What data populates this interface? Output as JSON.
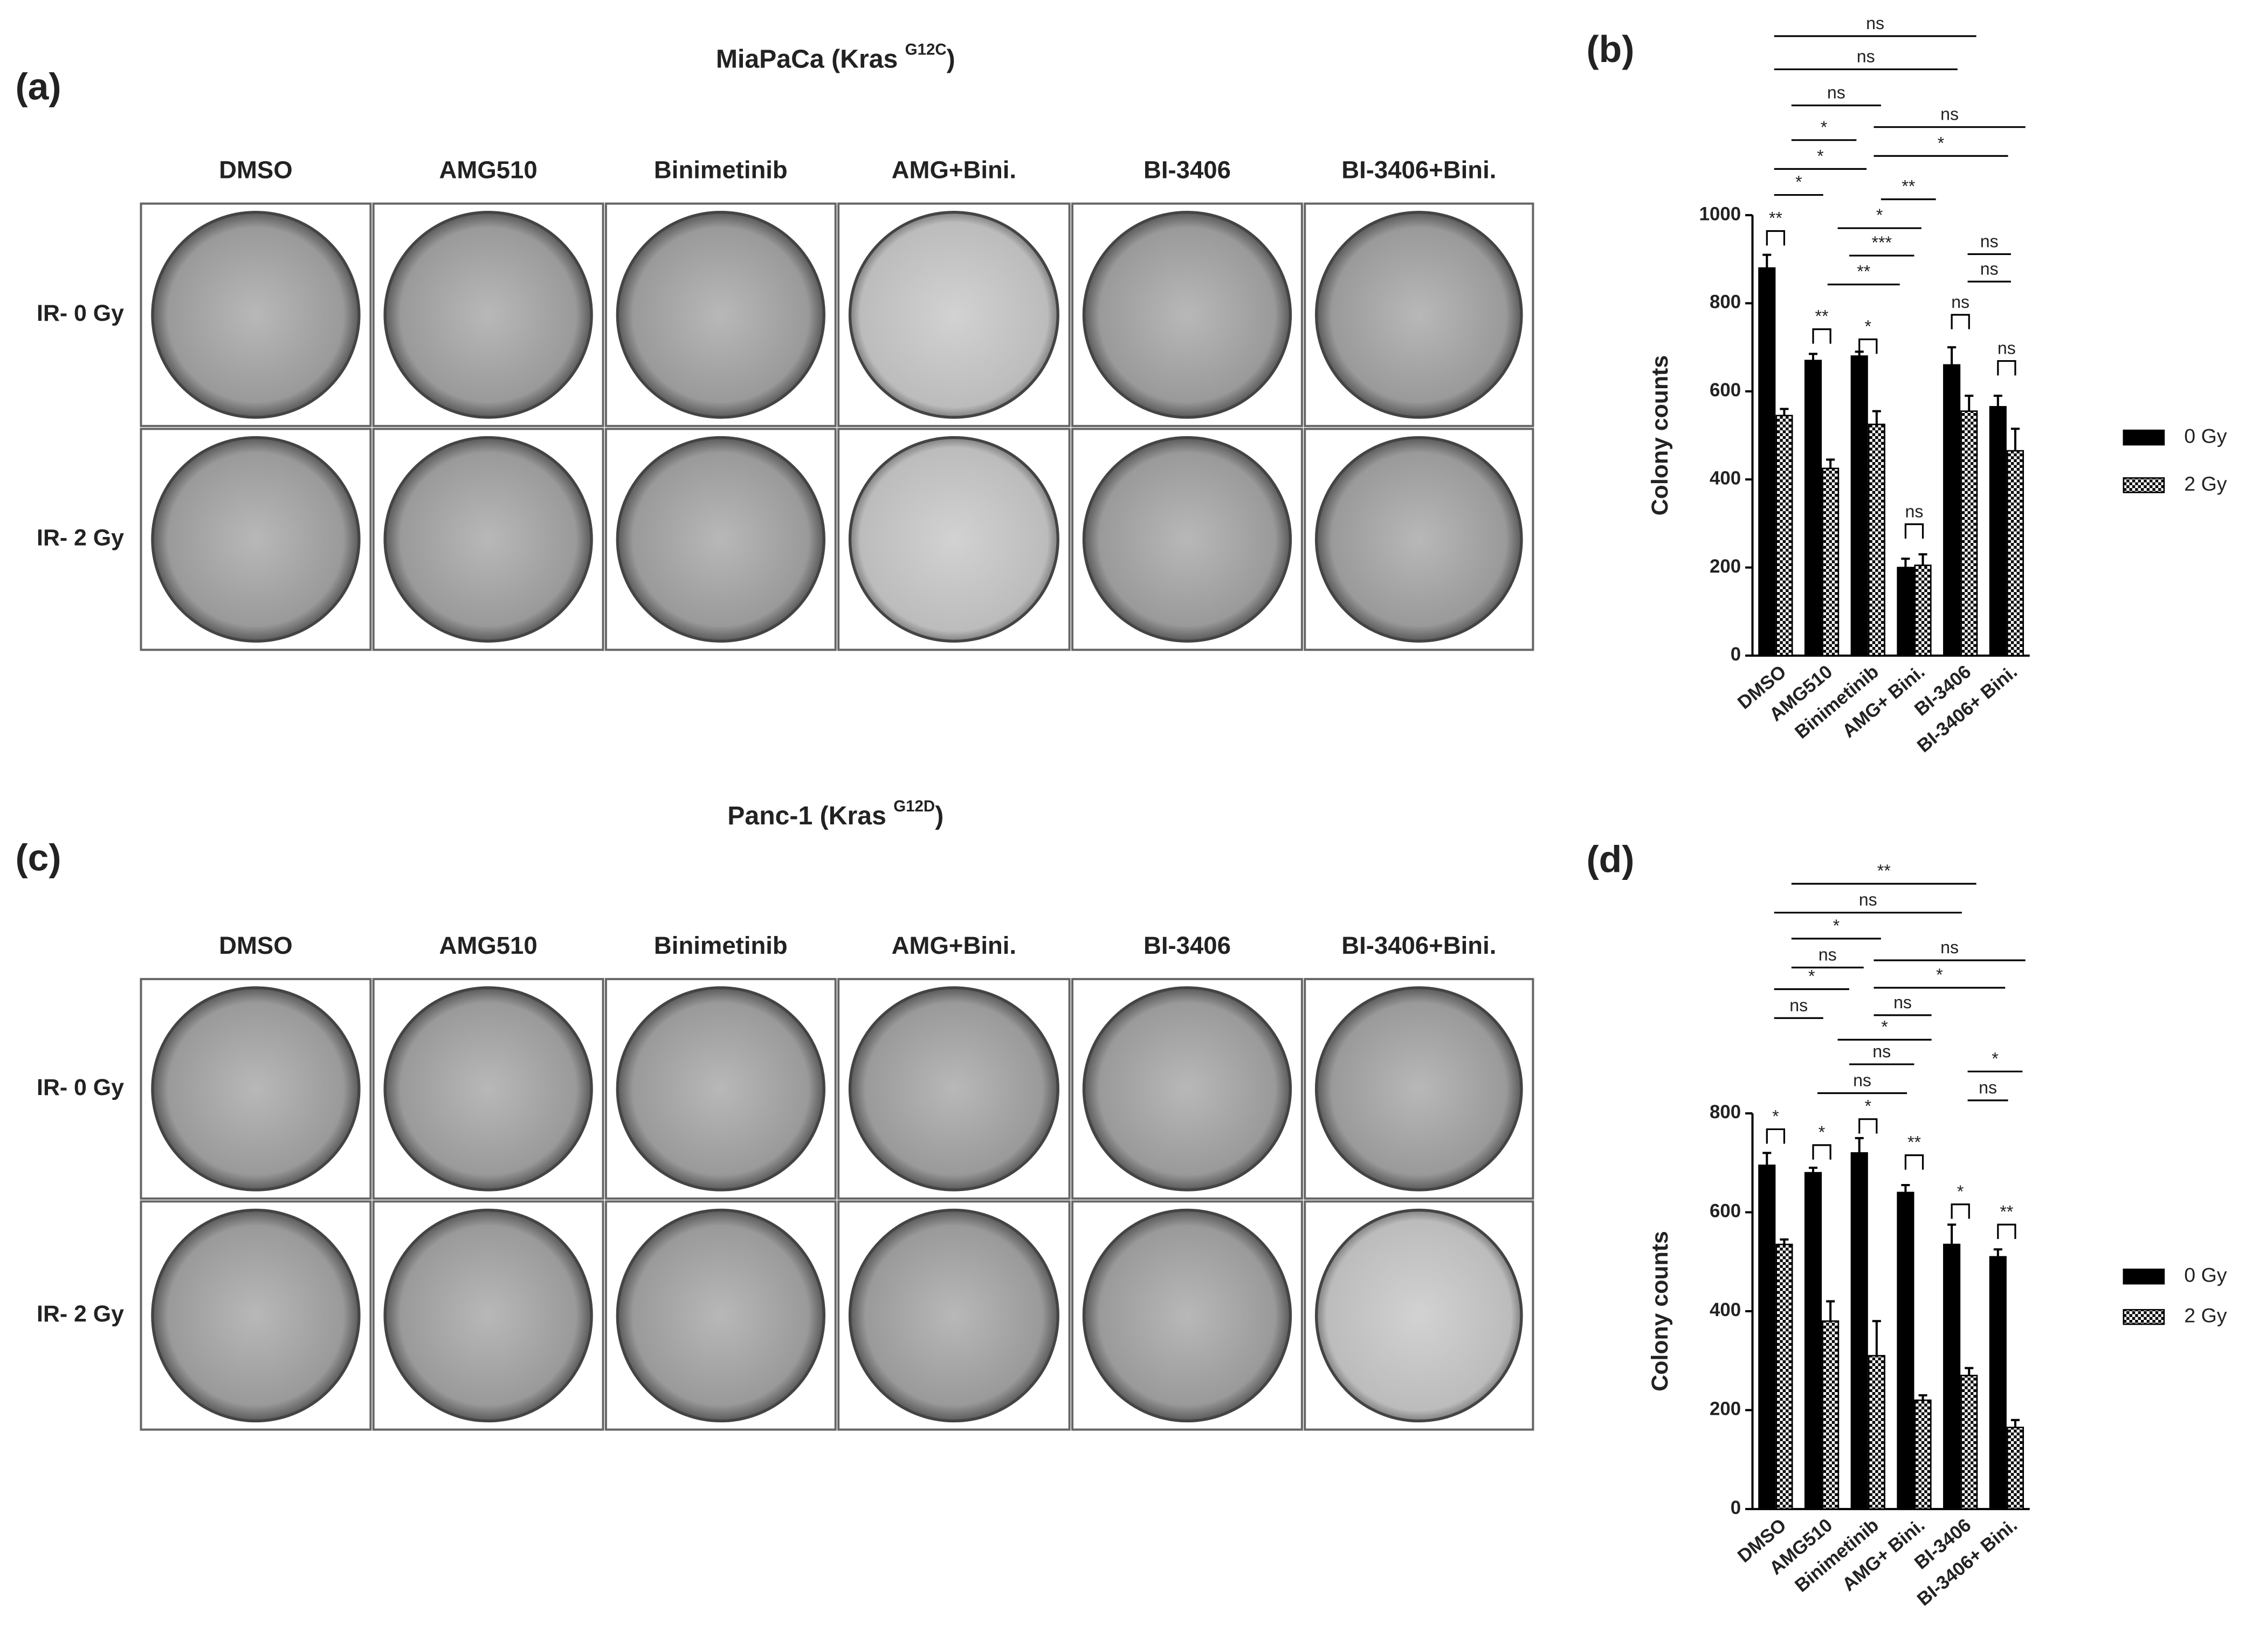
{
  "panels": [
    {
      "label": "(a)",
      "title": "MiaPaCa (Kras ",
      "title_sup": "G12C",
      "title_end": ")",
      "columns": [
        "DMSO",
        "AMG510",
        "Binimetinib",
        "AMG+Bini.",
        "BI-3406",
        "BI-3406+Bini."
      ],
      "rows": [
        "IR- 0 Gy",
        "IR- 2 Gy"
      ]
    },
    {
      "label": "(c)",
      "title": "Panc-1 (Kras ",
      "title_sup": "G12D",
      "title_end": ")",
      "columns": [
        "DMSO",
        "AMG510",
        "Binimetinib",
        "AMG+Bini.",
        "BI-3406",
        "BI-3406+Bini."
      ],
      "rows": [
        "IR- 0 Gy",
        "IR- 2 Gy"
      ]
    }
  ],
  "chart_data": [
    {
      "type": "bar",
      "label": "(b)",
      "ylabel": "Colony counts",
      "categories": [
        "DMSO",
        "AMG510",
        "Binimetinib",
        "AMG+ Bini.",
        "BI-3406",
        "BI-3406+ Bini."
      ],
      "series": [
        {
          "name": "0 Gy",
          "color": "#000000",
          "values": [
            880,
            670,
            680,
            200,
            660,
            565
          ],
          "errors": [
            30,
            15,
            10,
            20,
            40,
            25
          ]
        },
        {
          "name": "2 Gy",
          "color": "#000000",
          "pattern": "checker",
          "values": [
            545,
            425,
            525,
            205,
            555,
            465
          ],
          "errors": [
            15,
            20,
            30,
            25,
            35,
            50
          ]
        }
      ],
      "ylim": [
        0,
        1000
      ],
      "yticks": [
        0,
        200,
        400,
        600,
        800,
        1000
      ],
      "legend": "right",
      "significance": [
        "ns",
        "ns",
        "ns",
        "ns",
        "*",
        "*",
        "*",
        "**",
        "*",
        "**",
        "*",
        "***",
        "**",
        "**",
        "*",
        "ns",
        "ns",
        "ns",
        "ns",
        "ns"
      ]
    },
    {
      "type": "bar",
      "label": "(d)",
      "ylabel": "Colony counts",
      "categories": [
        "DMSO",
        "AMG510",
        "Binimetinib",
        "AMG+ Bini.",
        "BI-3406",
        "BI-3406+ Bini."
      ],
      "series": [
        {
          "name": "0 Gy",
          "color": "#000000",
          "values": [
            695,
            680,
            720,
            640,
            535,
            510
          ],
          "errors": [
            25,
            10,
            30,
            15,
            40,
            15
          ]
        },
        {
          "name": "2 Gy",
          "color": "#000000",
          "pattern": "checker",
          "values": [
            535,
            380,
            310,
            220,
            270,
            165
          ],
          "errors": [
            10,
            40,
            70,
            10,
            15,
            15
          ]
        }
      ],
      "ylim": [
        0,
        800
      ],
      "yticks": [
        0,
        200,
        400,
        600,
        800
      ],
      "legend": "right",
      "significance": [
        "**",
        "ns",
        "*",
        "ns",
        "ns",
        "*",
        "*",
        "ns",
        "ns",
        "*",
        "ns",
        "ns",
        "*",
        "*",
        "*",
        "**",
        "*",
        "ns",
        "*",
        "**"
      ]
    }
  ]
}
